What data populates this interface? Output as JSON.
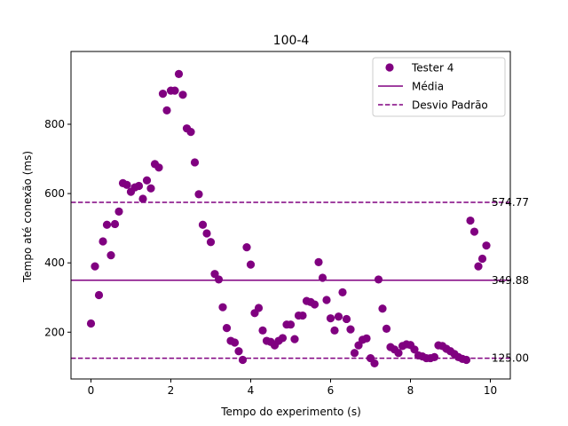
{
  "chart_data": {
    "type": "scatter",
    "title": "100-4",
    "xlabel": "Tempo do experimento (s)",
    "ylabel": "Tempo até conexão (ms)",
    "xlim": [
      -0.5,
      10.5
    ],
    "ylim": [
      65,
      1010
    ],
    "xticks": [
      0,
      2,
      4,
      6,
      8,
      10
    ],
    "yticks": [
      200,
      400,
      600,
      800
    ],
    "grid": false,
    "legend_position": "top-right",
    "colors": {
      "series": "#800080"
    },
    "series": [
      {
        "name": "Tester 4",
        "x": [
          0.0,
          0.1,
          0.2,
          0.3,
          0.4,
          0.5,
          0.6,
          0.7,
          0.8,
          0.9,
          1.0,
          1.1,
          1.2,
          1.3,
          1.4,
          1.5,
          1.6,
          1.7,
          1.8,
          1.9,
          2.0,
          2.1,
          2.2,
          2.3,
          2.4,
          2.5,
          2.6,
          2.7,
          2.8,
          2.9,
          3.0,
          3.1,
          3.2,
          3.3,
          3.4,
          3.5,
          3.6,
          3.7,
          3.8,
          3.9,
          4.0,
          4.1,
          4.2,
          4.3,
          4.4,
          4.5,
          4.6,
          4.7,
          4.8,
          4.9,
          5.0,
          5.1,
          5.2,
          5.3,
          5.4,
          5.5,
          5.6,
          5.7,
          5.8,
          5.9,
          6.0,
          6.1,
          6.2,
          6.3,
          6.4,
          6.5,
          6.6,
          6.7,
          6.8,
          6.9,
          7.0,
          7.1,
          7.2,
          7.3,
          7.4,
          7.5,
          7.6,
          7.7,
          7.8,
          7.9,
          8.0,
          8.1,
          8.2,
          8.3,
          8.4,
          8.5,
          8.6,
          8.7,
          8.8,
          8.9,
          9.0,
          9.1,
          9.2,
          9.3,
          9.4,
          9.5,
          9.6,
          9.7,
          9.8,
          9.9
        ],
        "y": [
          225,
          390,
          307,
          462,
          510,
          422,
          512,
          548,
          630,
          625,
          605,
          618,
          622,
          585,
          638,
          615,
          685,
          675,
          888,
          840,
          897,
          897,
          945,
          885,
          788,
          778,
          690,
          598,
          510,
          485,
          460,
          368,
          352,
          272,
          212,
          175,
          170,
          145,
          120,
          445,
          395,
          255,
          270,
          205,
          175,
          172,
          162,
          175,
          183,
          222,
          222,
          180,
          248,
          248,
          290,
          287,
          280,
          402,
          357,
          293,
          240,
          205,
          245,
          315,
          238,
          208,
          140,
          162,
          178,
          182,
          125,
          110,
          352,
          268,
          210,
          157,
          150,
          140,
          160,
          165,
          163,
          150,
          133,
          130,
          125,
          125,
          128,
          162,
          160,
          152,
          145,
          137,
          128,
          123,
          120,
          522,
          490,
          390,
          412,
          450
        ]
      }
    ],
    "reference_lines": [
      {
        "name": "Média",
        "y": 349.88,
        "label": "349.88",
        "style": "solid"
      },
      {
        "name": "Desvio Padrão",
        "y": 574.77,
        "label": "574.77",
        "style": "dashed"
      },
      {
        "name": "Desvio Padrão",
        "y": 125.0,
        "label": "125.00",
        "style": "dashed"
      }
    ],
    "legend": [
      {
        "label": "Tester 4",
        "kind": "marker"
      },
      {
        "label": "Média",
        "kind": "solid-line"
      },
      {
        "label": "Desvio Padrão",
        "kind": "dashed-line"
      }
    ]
  }
}
